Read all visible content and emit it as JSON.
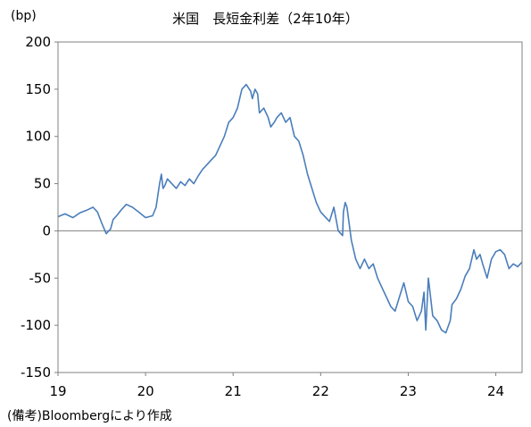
{
  "chart_data": {
    "type": "line",
    "title": "米国　長短金利差（2年10年）",
    "unit_label": "(bp)",
    "xlabel": "",
    "ylabel": "",
    "ylim": [
      -150,
      200
    ],
    "yticks": [
      -150,
      -100,
      -50,
      0,
      50,
      100,
      150,
      200
    ],
    "xlim": [
      2019,
      2024.3
    ],
    "xticks": [
      {
        "value": 2019,
        "label": "19"
      },
      {
        "value": 2020,
        "label": "20"
      },
      {
        "value": 2021,
        "label": "21"
      },
      {
        "value": 2022,
        "label": "22"
      },
      {
        "value": 2023,
        "label": "23"
      },
      {
        "value": 2024,
        "label": "24"
      }
    ],
    "grid": false,
    "zero_line": true,
    "line_color": "#4a7ebb",
    "series": [
      {
        "name": "",
        "x": [
          2019.0,
          2019.08,
          2019.17,
          2019.25,
          2019.33,
          2019.4,
          2019.45,
          2019.5,
          2019.55,
          2019.6,
          2019.63,
          2019.67,
          2019.72,
          2019.78,
          2019.85,
          2019.92,
          2020.0,
          2020.08,
          2020.12,
          2020.16,
          2020.18,
          2020.2,
          2020.22,
          2020.25,
          2020.3,
          2020.35,
          2020.4,
          2020.45,
          2020.5,
          2020.55,
          2020.6,
          2020.65,
          2020.7,
          2020.75,
          2020.8,
          2020.85,
          2020.9,
          2020.95,
          2021.0,
          2021.05,
          2021.1,
          2021.15,
          2021.2,
          2021.22,
          2021.25,
          2021.28,
          2021.3,
          2021.35,
          2021.4,
          2021.43,
          2021.47,
          2021.5,
          2021.55,
          2021.6,
          2021.65,
          2021.7,
          2021.75,
          2021.8,
          2021.85,
          2021.9,
          2021.95,
          2022.0,
          2022.05,
          2022.1,
          2022.15,
          2022.2,
          2022.25,
          2022.26,
          2022.28,
          2022.3,
          2022.35,
          2022.4,
          2022.45,
          2022.5,
          2022.55,
          2022.6,
          2022.65,
          2022.7,
          2022.75,
          2022.8,
          2022.85,
          2022.9,
          2022.95,
          2023.0,
          2023.05,
          2023.1,
          2023.15,
          2023.18,
          2023.2,
          2023.23,
          2023.28,
          2023.33,
          2023.38,
          2023.43,
          2023.48,
          2023.5,
          2023.55,
          2023.6,
          2023.65,
          2023.7,
          2023.75,
          2023.78,
          2023.82,
          2023.85,
          2023.9,
          2023.95,
          2024.0,
          2024.05,
          2024.1,
          2024.15,
          2024.2,
          2024.25,
          2024.3
        ],
        "values": [
          15,
          18,
          14,
          19,
          22,
          25,
          20,
          8,
          -3,
          2,
          12,
          16,
          22,
          28,
          25,
          20,
          14,
          16,
          25,
          50,
          60,
          45,
          48,
          55,
          50,
          45,
          52,
          48,
          55,
          50,
          58,
          65,
          70,
          75,
          80,
          90,
          100,
          115,
          120,
          130,
          150,
          155,
          148,
          140,
          150,
          145,
          125,
          130,
          120,
          110,
          115,
          120,
          125,
          115,
          120,
          100,
          95,
          80,
          60,
          45,
          30,
          20,
          15,
          10,
          25,
          0,
          -5,
          20,
          30,
          25,
          -10,
          -30,
          -40,
          -30,
          -40,
          -35,
          -50,
          -60,
          -70,
          -80,
          -85,
          -70,
          -55,
          -75,
          -80,
          -95,
          -85,
          -65,
          -105,
          -50,
          -90,
          -95,
          -105,
          -108,
          -95,
          -78,
          -72,
          -62,
          -48,
          -40,
          -20,
          -30,
          -25,
          -35,
          -50,
          -30,
          -22,
          -20,
          -25,
          -40,
          -35,
          -38,
          -33
        ]
      }
    ]
  },
  "source_note": "(備考)Bloombergにより作成"
}
